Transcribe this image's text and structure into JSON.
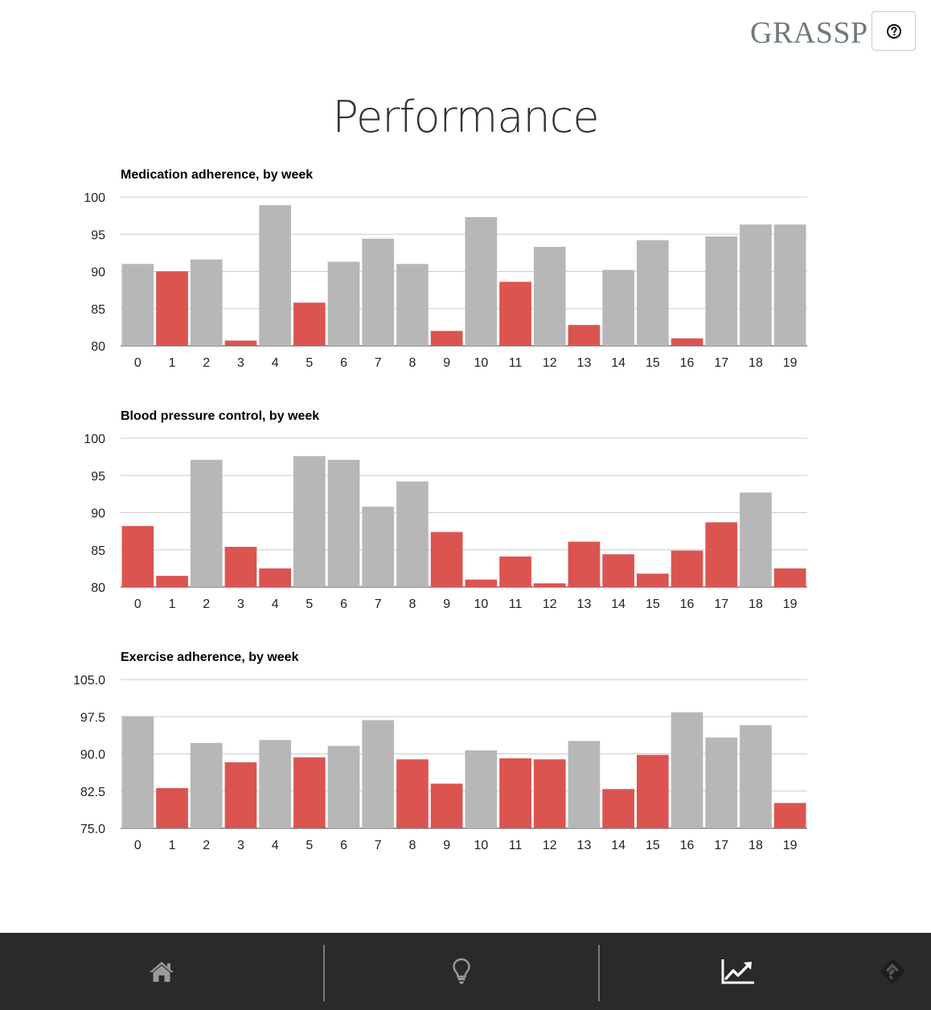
{
  "header": {
    "brand": "GRASSP",
    "help_icon": "question-circle-icon"
  },
  "page": {
    "title": "Performance"
  },
  "colors": {
    "good": "#b7b7b7",
    "bad": "#db5450",
    "grid": "#cccccc",
    "nav_bg": "#2a2a2a",
    "nav_icon": "#9a9a9a",
    "nav_icon_active": "#ffffff"
  },
  "chart_data": [
    {
      "type": "bar",
      "title": "Medication adherence, by week",
      "xlabel": "",
      "ylabel": "",
      "categories": [
        "0",
        "1",
        "2",
        "3",
        "4",
        "5",
        "6",
        "7",
        "8",
        "9",
        "10",
        "11",
        "12",
        "13",
        "14",
        "15",
        "16",
        "17",
        "18",
        "19"
      ],
      "values": [
        91.0,
        90.0,
        91.6,
        80.7,
        98.9,
        85.8,
        91.3,
        94.4,
        91.0,
        82.0,
        97.3,
        88.6,
        93.3,
        82.8,
        90.2,
        94.2,
        81.0,
        94.7,
        96.3,
        96.3
      ],
      "status": [
        "good",
        "bad",
        "good",
        "bad",
        "good",
        "bad",
        "good",
        "good",
        "good",
        "bad",
        "good",
        "bad",
        "good",
        "bad",
        "good",
        "good",
        "bad",
        "good",
        "good",
        "good"
      ],
      "ylim": [
        80,
        100
      ],
      "yticks": [
        "80",
        "85",
        "90",
        "95",
        "100"
      ],
      "grid": true,
      "legend": "none"
    },
    {
      "type": "bar",
      "title": "Blood pressure control, by week",
      "xlabel": "",
      "ylabel": "",
      "categories": [
        "0",
        "1",
        "2",
        "3",
        "4",
        "5",
        "6",
        "7",
        "8",
        "9",
        "10",
        "11",
        "12",
        "13",
        "14",
        "15",
        "16",
        "17",
        "18",
        "19"
      ],
      "values": [
        88.2,
        81.5,
        97.1,
        85.4,
        82.5,
        97.6,
        97.1,
        90.8,
        94.2,
        87.4,
        81.0,
        84.1,
        80.5,
        86.1,
        84.4,
        81.8,
        84.9,
        88.7,
        92.7,
        82.5
      ],
      "status": [
        "bad",
        "bad",
        "good",
        "bad",
        "bad",
        "good",
        "good",
        "good",
        "good",
        "bad",
        "bad",
        "bad",
        "bad",
        "bad",
        "bad",
        "bad",
        "bad",
        "bad",
        "good",
        "bad"
      ],
      "ylim": [
        80,
        100
      ],
      "yticks": [
        "80",
        "85",
        "90",
        "95",
        "100"
      ],
      "grid": true,
      "legend": "none"
    },
    {
      "type": "bar",
      "title": "Exercise adherence, by week",
      "xlabel": "",
      "ylabel": "",
      "categories": [
        "0",
        "1",
        "2",
        "3",
        "4",
        "5",
        "6",
        "7",
        "8",
        "9",
        "10",
        "11",
        "12",
        "13",
        "14",
        "15",
        "16",
        "17",
        "18",
        "19"
      ],
      "values": [
        97.6,
        83.1,
        92.2,
        88.3,
        92.8,
        89.3,
        91.6,
        96.8,
        88.9,
        84.0,
        90.7,
        89.1,
        88.9,
        92.6,
        82.9,
        89.8,
        98.4,
        93.3,
        95.8,
        80.1
      ],
      "status": [
        "good",
        "bad",
        "good",
        "bad",
        "good",
        "bad",
        "good",
        "good",
        "bad",
        "bad",
        "good",
        "bad",
        "bad",
        "good",
        "bad",
        "bad",
        "good",
        "good",
        "good",
        "bad"
      ],
      "ylim": [
        75,
        105
      ],
      "yticks": [
        "75.0",
        "82.5",
        "90.0",
        "97.5",
        "105.0"
      ],
      "grid": true,
      "legend": "none"
    }
  ],
  "nav": {
    "items": [
      {
        "icon": "home-icon",
        "active": false
      },
      {
        "icon": "lightbulb-icon",
        "active": false
      },
      {
        "icon": "trend-chart-icon",
        "active": true
      },
      {
        "icon": "feedly-icon",
        "active": false
      }
    ]
  }
}
